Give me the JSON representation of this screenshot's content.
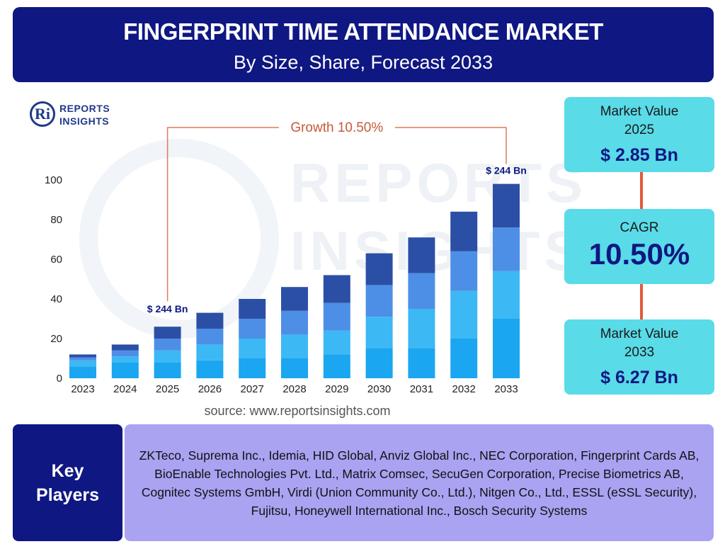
{
  "header": {
    "title": "FINGERPRINT TIME ATTENDANCE MARKET",
    "subtitle": "By Size, Share, Forecast 2033"
  },
  "logo": {
    "mark": "Ri",
    "line1": "REPORTS",
    "line2": "INSIGHTS"
  },
  "watermark": {
    "line1": "REPORTS",
    "line2": "INSIGHTS"
  },
  "chart_data": {
    "type": "bar",
    "stacked": true,
    "categories": [
      "2023",
      "2024",
      "2025",
      "2026",
      "2027",
      "2028",
      "2029",
      "2030",
      "2031",
      "2032",
      "2033"
    ],
    "series": [
      {
        "values": [
          6,
          8,
          8,
          9,
          10,
          10,
          12,
          15,
          15,
          20,
          30
        ],
        "color": "#1aa6f0"
      },
      {
        "values": [
          3,
          3,
          6,
          8,
          10,
          12,
          12,
          16,
          20,
          24,
          24
        ],
        "color": "#3cb8f4"
      },
      {
        "values": [
          1.5,
          3,
          6,
          8,
          10,
          12,
          14,
          16,
          18,
          20,
          22
        ],
        "color": "#4d8fe6"
      },
      {
        "values": [
          1.5,
          3,
          6,
          8,
          10,
          12,
          14,
          16,
          18,
          20,
          22
        ],
        "color": "#2c4fa6"
      }
    ],
    "ylim": [
      0,
      100
    ],
    "yticks": [
      0,
      20,
      40,
      60,
      80,
      100
    ],
    "annotations": {
      "growth": "Growth 10.50%",
      "label_start": "$ 244 Bn",
      "label_end": "$ 244 Bn"
    },
    "grid": false,
    "legend": "none"
  },
  "source": "source: www.reportsinsights.com",
  "kpis": {
    "market_value_2025": {
      "label": "Market Value 2025",
      "value": "$ 2.85 Bn"
    },
    "cagr": {
      "label": "CAGR",
      "value": "10.50%"
    },
    "market_value_2033": {
      "label": "Market Value 2033",
      "value": "$ 6.27 Bn"
    }
  },
  "key_players": {
    "label_line1": "Key",
    "label_line2": "Players",
    "text": "ZKTeco, Suprema Inc., Idemia, HID Global, Anviz Global Inc., NEC Corporation, Fingerprint Cards AB, BioEnable Technologies Pvt. Ltd., Matrix Comsec, SecuGen Corporation, Precise Biometrics AB, Cognitec Systems GmbH, Virdi (Union Community Co., Ltd.), Nitgen Co., Ltd., ESSL (eSSL Security), Fujitsu, Honeywell International Inc., Bosch Security Systems"
  },
  "colors": {
    "navy": "#0f1782",
    "cyan": "#59dbe8",
    "lavender": "#a9a3f2",
    "accent": "#e25a3a"
  }
}
